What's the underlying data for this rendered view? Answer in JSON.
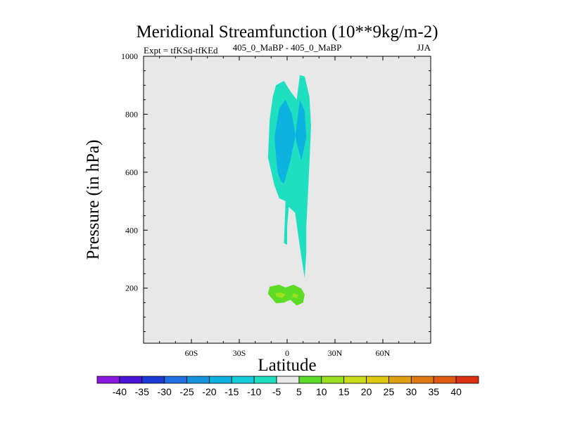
{
  "chart_data": {
    "type": "contour",
    "title": "Meridional Streamfunction (10**9kg/m-2)",
    "subtitle_left": "Expt = tfKSd-tfKEd",
    "subtitle_center": "405_0_MaBP - 405_0_MaBP",
    "subtitle_right": "JJA",
    "xlabel": "Latitude",
    "ylabel": "Pressure (in hPa)",
    "xlim": [
      -90,
      90
    ],
    "ylim": [
      1000,
      10
    ],
    "y_reversed": true,
    "x_ticks": [
      {
        "value": -60,
        "label": "60S"
      },
      {
        "value": -30,
        "label": "30S"
      },
      {
        "value": 0,
        "label": "0"
      },
      {
        "value": 30,
        "label": "30N"
      },
      {
        "value": 60,
        "label": "60N"
      }
    ],
    "y_ticks": [
      {
        "value": 200,
        "label": "200"
      },
      {
        "value": 400,
        "label": "400"
      },
      {
        "value": 600,
        "label": "600"
      },
      {
        "value": 800,
        "label": "800"
      },
      {
        "value": 1000,
        "label": "1000"
      }
    ],
    "colorbar": {
      "levels": [
        -40,
        -35,
        -30,
        -25,
        -20,
        -15,
        -10,
        -5,
        5,
        10,
        15,
        20,
        25,
        30,
        35,
        40
      ],
      "colors": [
        "#8a18dc",
        "#4b12d8",
        "#1a3ad6",
        "#1f6fe0",
        "#1492dc",
        "#0cb2e0",
        "#14ccd8",
        "#1ee0c0",
        "#e8e8e8",
        "#5cdc24",
        "#9ae01c",
        "#c8dc18",
        "#e0c810",
        "#e0a010",
        "#e07a10",
        "#e05a10",
        "#dc3010"
      ]
    },
    "background_color": "#e8e8e8",
    "regions": [
      {
        "name": "positive-5-to-10",
        "color": "#5cdc24",
        "points": [
          [
            -12,
            180
          ],
          [
            -7,
            148
          ],
          [
            -2,
            150
          ],
          [
            2,
            160
          ],
          [
            6,
            140
          ],
          [
            10,
            150
          ],
          [
            11,
            178
          ],
          [
            9,
            198
          ],
          [
            4,
            212
          ],
          [
            -1,
            202
          ],
          [
            -5,
            212
          ],
          [
            -11,
            205
          ]
        ]
      },
      {
        "name": "positive-10-to-15-west",
        "color": "#9ae01c",
        "points": [
          [
            -7,
            172
          ],
          [
            -3,
            166
          ],
          [
            -1,
            178
          ],
          [
            -4,
            186
          ],
          [
            -7,
            182
          ]
        ]
      },
      {
        "name": "positive-10-to-15-east",
        "color": "#9ae01c",
        "points": [
          [
            3,
            170
          ],
          [
            6,
            165
          ],
          [
            7,
            177
          ],
          [
            4,
            183
          ]
        ]
      },
      {
        "name": "negative-5-to-10",
        "color": "#1ee0c0",
        "points": [
          [
            -2,
            355
          ],
          [
            -1,
            500
          ],
          [
            -5,
            510
          ],
          [
            -8,
            555
          ],
          [
            -12,
            650
          ],
          [
            -11,
            780
          ],
          [
            -9,
            860
          ],
          [
            -7,
            900
          ],
          [
            -2,
            915
          ],
          [
            2,
            880
          ],
          [
            6,
            850
          ],
          [
            8,
            935
          ],
          [
            11,
            930
          ],
          [
            14,
            860
          ],
          [
            15,
            760
          ],
          [
            14,
            630
          ],
          [
            13,
            520
          ],
          [
            12,
            410
          ],
          [
            12,
            320
          ],
          [
            11,
            235
          ],
          [
            9,
            305
          ],
          [
            7,
            380
          ],
          [
            5,
            460
          ],
          [
            1,
            480
          ],
          [
            0,
            410
          ],
          [
            0,
            350
          ]
        ]
      },
      {
        "name": "negative-10-to-15",
        "color": "#0cb2e0",
        "points": [
          [
            -6,
            600
          ],
          [
            -8,
            720
          ],
          [
            -5,
            820
          ],
          [
            -1,
            850
          ],
          [
            3,
            800
          ],
          [
            6,
            700
          ],
          [
            9,
            640
          ],
          [
            12,
            720
          ],
          [
            11,
            810
          ],
          [
            8,
            850
          ],
          [
            5,
            720
          ],
          [
            2,
            640
          ],
          [
            -2,
            560
          ],
          [
            -4,
            570
          ]
        ]
      }
    ]
  }
}
